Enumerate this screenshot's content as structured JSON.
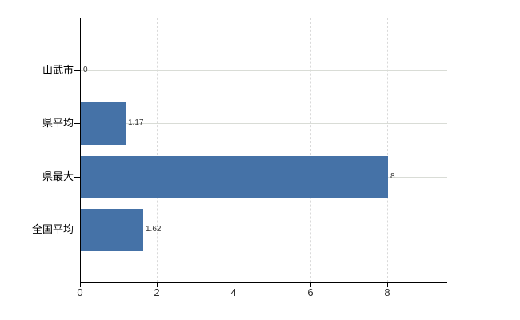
{
  "chart_data": {
    "type": "bar",
    "orientation": "horizontal",
    "title": "",
    "xlabel": "",
    "ylabel": "",
    "categories": [
      "山武市",
      "県平均",
      "県最大",
      "全国平均"
    ],
    "values": [
      0,
      1.17,
      8,
      1.62
    ],
    "value_labels": [
      "0",
      "1.17",
      "8",
      "1.62"
    ],
    "x_ticks": [
      0,
      2,
      4,
      6,
      8
    ],
    "x_tick_labels": [
      "0",
      "2",
      "4",
      "6",
      "8"
    ],
    "xlim": [
      0,
      9.55
    ],
    "grid": true,
    "legend": false,
    "colors": {
      "bar": "#4572a7",
      "gridline": "#d9d9d9",
      "axis": "#000000",
      "value_label": "#333333",
      "category_label": "#000000"
    }
  }
}
